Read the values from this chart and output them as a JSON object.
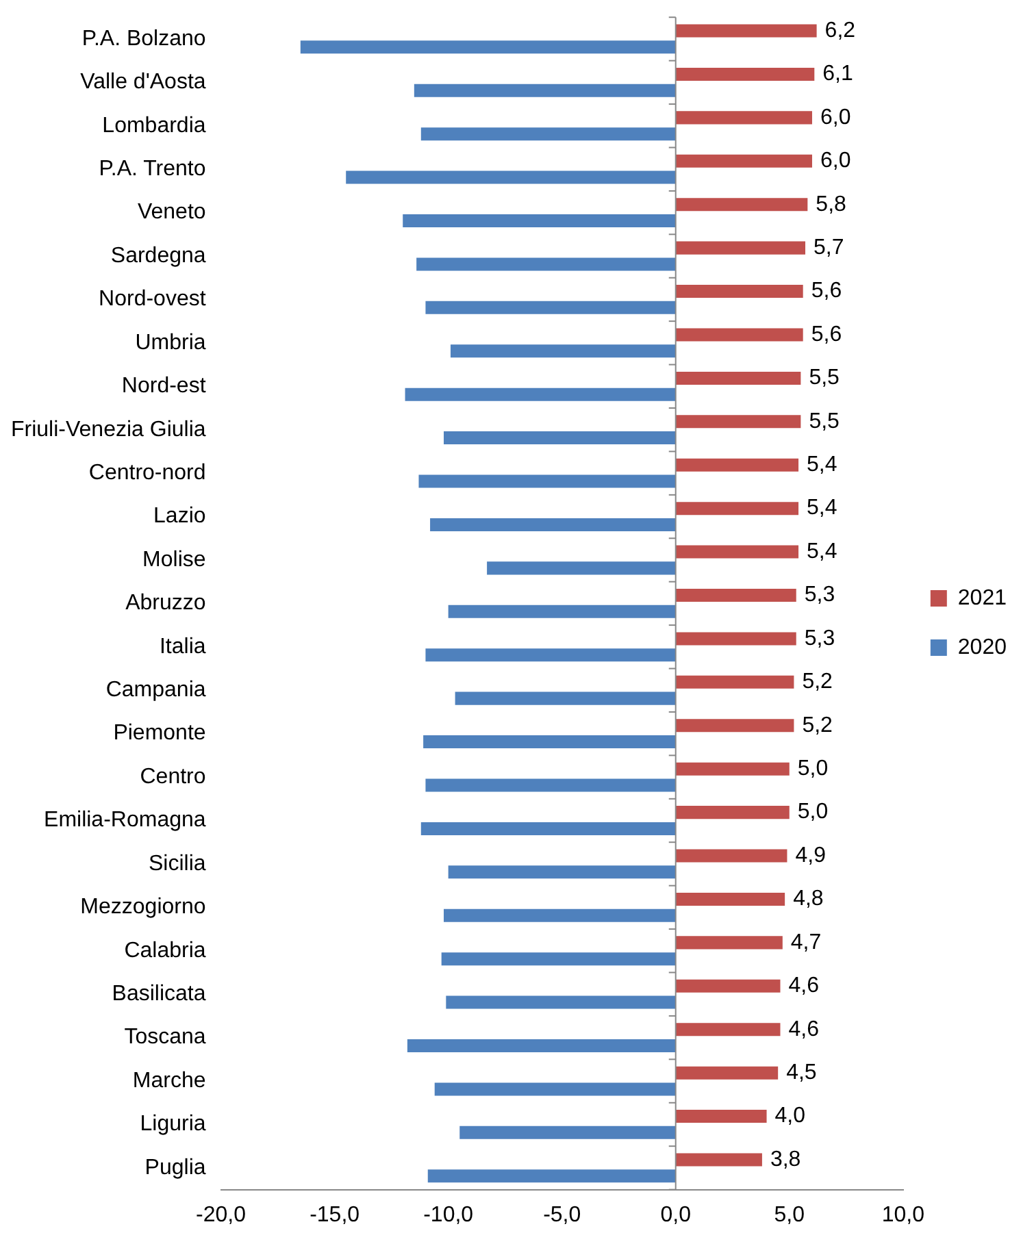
{
  "chart_data": {
    "type": "bar",
    "orientation": "horizontal",
    "categories": [
      "P.A. Bolzano",
      "Valle d'Aosta",
      "Lombardia",
      "P.A. Trento",
      "Veneto",
      "Sardegna",
      "Nord-ovest",
      "Umbria",
      "Nord-est",
      "Friuli-Venezia Giulia",
      "Centro-nord",
      "Lazio",
      "Molise",
      "Abruzzo",
      "Italia",
      "Campania",
      "Piemonte",
      "Centro",
      "Emilia-Romagna",
      "Sicilia",
      "Mezzogiorno",
      "Calabria",
      "Basilicata",
      "Toscana",
      "Marche",
      "Liguria",
      "Puglia"
    ],
    "series": [
      {
        "name": "2021",
        "color": "#c0504d",
        "values": [
          6.2,
          6.1,
          6.0,
          6.0,
          5.8,
          5.7,
          5.6,
          5.6,
          5.5,
          5.5,
          5.4,
          5.4,
          5.4,
          5.3,
          5.3,
          5.2,
          5.2,
          5.0,
          5.0,
          4.9,
          4.8,
          4.7,
          4.6,
          4.6,
          4.5,
          4.0,
          3.8
        ],
        "value_labels": [
          "6,2",
          "6,1",
          "6,0",
          "6,0",
          "5,8",
          "5,7",
          "5,6",
          "5,6",
          "5,5",
          "5,5",
          "5,4",
          "5,4",
          "5,4",
          "5,3",
          "5,3",
          "5,2",
          "5,2",
          "5,0",
          "5,0",
          "4,9",
          "4,8",
          "4,7",
          "4,6",
          "4,6",
          "4,5",
          "4,0",
          "3,8"
        ]
      },
      {
        "name": "2020",
        "color": "#4f81bd",
        "values": [
          -16.5,
          -11.5,
          -11.2,
          -14.5,
          -12.0,
          -11.4,
          -11.0,
          -9.9,
          -11.9,
          -10.2,
          -11.3,
          -10.8,
          -8.3,
          -10.0,
          -11.0,
          -9.7,
          -11.1,
          -11.0,
          -11.2,
          -10.0,
          -10.2,
          -10.3,
          -10.1,
          -11.8,
          -10.6,
          -9.5,
          -10.9
        ]
      }
    ],
    "xlim": [
      -20,
      10
    ],
    "xticks": [
      {
        "value": -20,
        "label": "-20,0"
      },
      {
        "value": -15,
        "label": "-15,0"
      },
      {
        "value": -10,
        "label": "-10,0"
      },
      {
        "value": -5,
        "label": "-5,0"
      },
      {
        "value": 0,
        "label": "0,0"
      },
      {
        "value": 5,
        "label": "5,0"
      },
      {
        "value": 10,
        "label": "10,0"
      }
    ],
    "ref_lines": [
      {
        "axis": "x",
        "value": 0,
        "color": "#888888"
      }
    ],
    "grid": false,
    "legend": "right"
  }
}
